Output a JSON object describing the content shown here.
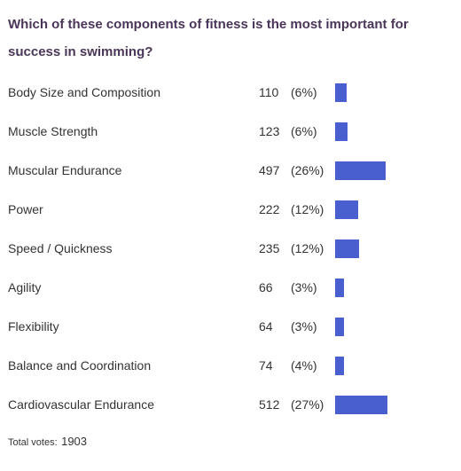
{
  "poll": {
    "question": "Which of these components of fitness is the most important for success in swimming?",
    "total_label": "Total votes:",
    "total_votes": "1903",
    "bar_color": "#4a5fcf"
  },
  "chart_data": {
    "type": "bar",
    "orientation": "horizontal",
    "title": "Which of these components of fitness is the most important for success in swimming?",
    "categories": [
      "Body Size and Composition",
      "Muscle Strength",
      "Muscular Endurance",
      "Power",
      "Speed / Quickness",
      "Agility",
      "Flexibility",
      "Balance and Coordination",
      "Cardiovascular Endurance"
    ],
    "values": [
      110,
      123,
      497,
      222,
      235,
      66,
      64,
      74,
      512
    ],
    "percent_labels": [
      "(6%)",
      "(6%)",
      "(26%)",
      "(12%)",
      "(12%)",
      "(3%)",
      "(3%)",
      "(4%)",
      "(27%)"
    ],
    "total_votes": 1903
  }
}
